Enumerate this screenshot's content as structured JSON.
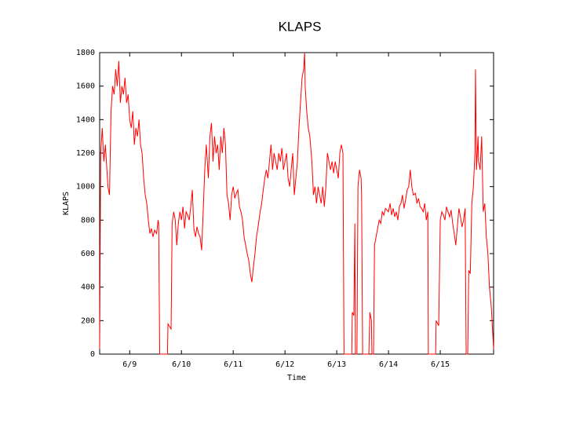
{
  "chart_data": {
    "type": "line",
    "title": "KLAPS",
    "x_label": "Time",
    "y_label": "KLAPS",
    "color": "#ff0000",
    "xlim": [
      8.42,
      16.03
    ],
    "xticks": [
      {
        "value": 9,
        "label": "6/9"
      },
      {
        "value": 10,
        "label": "6/10"
      },
      {
        "value": 11,
        "label": "6/11"
      },
      {
        "value": 12,
        "label": "6/12"
      },
      {
        "value": 13,
        "label": "6/13"
      },
      {
        "value": 14,
        "label": "6/14"
      },
      {
        "value": 15,
        "label": "6/15"
      }
    ],
    "ylim": [
      0,
      1800
    ],
    "yticks": [
      0,
      200,
      400,
      600,
      800,
      1000,
      1200,
      1400,
      1600,
      1800
    ],
    "x": [
      8.42,
      8.44,
      8.47,
      8.5,
      8.53,
      8.58,
      8.61,
      8.64,
      8.67,
      8.7,
      8.73,
      8.76,
      8.79,
      8.82,
      8.85,
      8.88,
      8.91,
      8.94,
      8.97,
      9.0,
      9.03,
      9.06,
      9.09,
      9.12,
      9.15,
      9.18,
      9.21,
      9.24,
      9.27,
      9.3,
      9.33,
      9.36,
      9.39,
      9.42,
      9.45,
      9.48,
      9.52,
      9.55,
      9.56,
      9.58,
      9.73,
      9.74,
      9.8,
      9.82,
      9.85,
      9.88,
      9.91,
      9.94,
      9.97,
      10.0,
      10.03,
      10.06,
      10.09,
      10.12,
      10.15,
      10.18,
      10.21,
      10.24,
      10.27,
      10.3,
      10.33,
      10.36,
      10.39,
      10.42,
      10.45,
      10.48,
      10.52,
      10.55,
      10.58,
      10.61,
      10.64,
      10.67,
      10.7,
      10.73,
      10.76,
      10.79,
      10.82,
      10.85,
      10.88,
      10.91,
      10.94,
      10.97,
      11.0,
      11.03,
      11.06,
      11.09,
      11.12,
      11.15,
      11.18,
      11.21,
      11.24,
      11.27,
      11.3,
      11.33,
      11.36,
      11.39,
      11.42,
      11.45,
      11.48,
      11.52,
      11.55,
      11.58,
      11.61,
      11.64,
      11.67,
      11.7,
      11.73,
      11.76,
      11.79,
      11.82,
      11.85,
      11.88,
      11.91,
      11.94,
      11.97,
      12.0,
      12.03,
      12.06,
      12.09,
      12.12,
      12.15,
      12.18,
      12.21,
      12.24,
      12.27,
      12.3,
      12.33,
      12.36,
      12.38,
      12.39,
      12.42,
      12.45,
      12.48,
      12.52,
      12.55,
      12.58,
      12.61,
      12.64,
      12.67,
      12.7,
      12.73,
      12.76,
      12.79,
      12.82,
      12.85,
      12.88,
      12.91,
      12.94,
      12.97,
      13.0,
      13.03,
      13.06,
      13.09,
      13.12,
      13.14,
      13.29,
      13.3,
      13.33,
      13.35,
      13.36,
      13.39,
      13.41,
      13.44,
      13.47,
      13.48,
      13.5,
      13.62,
      13.64,
      13.67,
      13.68,
      13.71,
      13.73,
      13.76,
      13.79,
      13.82,
      13.85,
      13.88,
      13.91,
      13.94,
      13.97,
      14.0,
      14.03,
      14.06,
      14.09,
      14.12,
      14.15,
      14.18,
      14.21,
      14.24,
      14.27,
      14.3,
      14.33,
      14.36,
      14.39,
      14.42,
      14.45,
      14.48,
      14.52,
      14.55,
      14.58,
      14.61,
      14.64,
      14.67,
      14.7,
      14.73,
      14.76,
      14.77,
      14.91,
      14.92,
      14.97,
      15.0,
      15.03,
      15.06,
      15.09,
      15.12,
      15.15,
      15.18,
      15.21,
      15.24,
      15.27,
      15.3,
      15.33,
      15.36,
      15.39,
      15.42,
      15.45,
      15.48,
      15.5,
      15.53,
      15.55,
      15.58,
      15.61,
      15.64,
      15.67,
      15.68,
      15.7,
      15.73,
      15.74,
      15.77,
      15.8,
      15.83,
      15.86,
      15.89,
      15.92,
      15.95,
      15.98,
      15.99,
      16.03
    ],
    "values": [
      30,
      1200,
      1350,
      1150,
      1250,
      1000,
      950,
      1450,
      1600,
      1550,
      1700,
      1600,
      1750,
      1500,
      1600,
      1550,
      1650,
      1500,
      1550,
      1400,
      1350,
      1450,
      1250,
      1350,
      1300,
      1400,
      1250,
      1200,
      1050,
      950,
      900,
      800,
      720,
      750,
      700,
      740,
      720,
      800,
      780,
      0,
      0,
      180,
      150,
      780,
      850,
      800,
      650,
      780,
      850,
      800,
      880,
      750,
      850,
      830,
      800,
      880,
      980,
      750,
      700,
      760,
      720,
      700,
      620,
      850,
      1100,
      1250,
      1050,
      1300,
      1380,
      1150,
      1300,
      1200,
      1250,
      1100,
      1300,
      1200,
      1350,
      1250,
      950,
      900,
      800,
      950,
      1000,
      930,
      960,
      980,
      880,
      850,
      800,
      700,
      650,
      600,
      560,
      480,
      430,
      520,
      600,
      700,
      760,
      850,
      900,
      980,
      1050,
      1100,
      1050,
      1150,
      1250,
      1100,
      1200,
      1150,
      1100,
      1200,
      1150,
      1230,
      1100,
      1150,
      1200,
      1050,
      1000,
      1100,
      1200,
      950,
      1050,
      1150,
      1350,
      1500,
      1650,
      1700,
      1800,
      1600,
      1450,
      1350,
      1300,
      1150,
      950,
      1000,
      900,
      1000,
      950,
      900,
      1000,
      880,
      1000,
      1200,
      1150,
      1100,
      1150,
      1080,
      1150,
      1100,
      1050,
      1200,
      1250,
      1200,
      0,
      0,
      250,
      230,
      780,
      0,
      0,
      1000,
      1100,
      1050,
      950,
      0,
      0,
      250,
      200,
      0,
      0,
      650,
      700,
      750,
      800,
      780,
      850,
      830,
      870,
      860,
      850,
      900,
      830,
      870,
      820,
      850,
      800,
      880,
      900,
      950,
      870,
      920,
      980,
      1000,
      1100,
      1000,
      950,
      960,
      900,
      930,
      880,
      870,
      850,
      900,
      800,
      850,
      0,
      0,
      200,
      170,
      800,
      850,
      830,
      800,
      880,
      850,
      820,
      860,
      780,
      720,
      650,
      760,
      870,
      820,
      760,
      800,
      870,
      0,
      0,
      500,
      480,
      900,
      1000,
      1200,
      1700,
      1100,
      1300,
      1150,
      1100,
      1300,
      850,
      900,
      700,
      600,
      400,
      300,
      260,
      30
    ]
  }
}
